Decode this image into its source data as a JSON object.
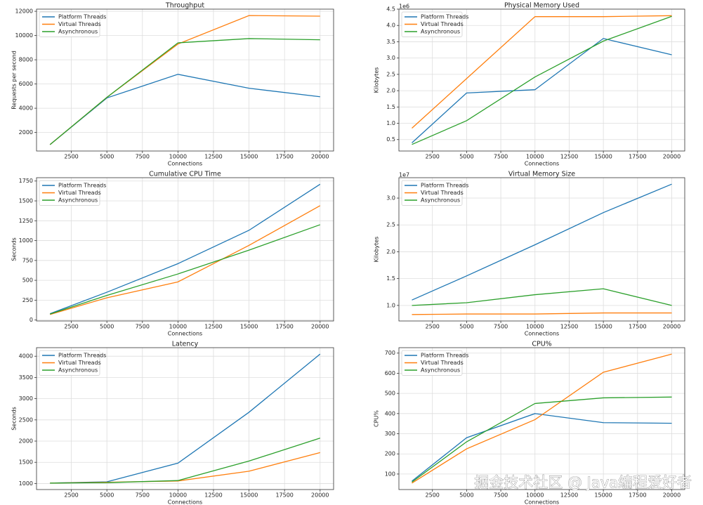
{
  "chart_data": [
    {
      "type": "line",
      "title": "Throughput",
      "xlabel": "Connections",
      "ylabel": "Requests per second",
      "x": [
        1000,
        5000,
        10000,
        15000,
        20000
      ],
      "xlim": [
        50,
        20950
      ],
      "xticks": [
        2500,
        5000,
        7500,
        10000,
        12500,
        15000,
        17500,
        20000
      ],
      "ylim": [
        470,
        12180
      ],
      "yticks": [
        2000,
        4000,
        6000,
        8000,
        10000,
        12000
      ],
      "grid": true,
      "legend": "upper left",
      "series": [
        {
          "name": "Platform Threads",
          "color": "#1f77b4",
          "values": [
            1000,
            4850,
            6800,
            5650,
            4950
          ]
        },
        {
          "name": "Virtual Threads",
          "color": "#ff7f0e",
          "values": [
            1000,
            4900,
            9300,
            11650,
            11600
          ]
        },
        {
          "name": "Asynchronous",
          "color": "#2ca02c",
          "values": [
            1000,
            4900,
            9400,
            9750,
            9650
          ]
        }
      ]
    },
    {
      "type": "line",
      "title": "Physical Memory Used",
      "xlabel": "Connections",
      "ylabel": "Kilobytes",
      "offset_label": "1e6",
      "x": [
        1000,
        5000,
        10000,
        15000,
        20000
      ],
      "xlim": [
        50,
        20950
      ],
      "xticks": [
        2500,
        5000,
        7500,
        10000,
        12500,
        15000,
        17500,
        20000
      ],
      "ylim": [
        0.15,
        4.5
      ],
      "yticks": [
        0.5,
        {
          "value": 1,
          "label": "1.0"
        },
        1.5,
        {
          "value": 2,
          "label": "2.0"
        },
        2.5,
        {
          "value": 3,
          "label": "3.0"
        },
        3.5,
        {
          "value": 4,
          "label": "4.0"
        },
        4.5
      ],
      "grid": true,
      "legend": "upper left",
      "series": [
        {
          "name": "Platform Threads",
          "color": "#1f77b4",
          "values": [
            0.4,
            1.93,
            2.03,
            3.6,
            3.1
          ]
        },
        {
          "name": "Virtual Threads",
          "color": "#ff7f0e",
          "values": [
            0.85,
            2.37,
            4.27,
            4.27,
            4.3
          ]
        },
        {
          "name": "Asynchronous",
          "color": "#2ca02c",
          "values": [
            0.35,
            1.08,
            2.42,
            3.52,
            4.28
          ]
        }
      ]
    },
    {
      "type": "line",
      "title": "Cumulative CPU Time",
      "xlabel": "Connections",
      "ylabel": "Seconds",
      "x": [
        1000,
        5000,
        10000,
        15000,
        20000
      ],
      "xlim": [
        50,
        20950
      ],
      "xticks": [
        2500,
        5000,
        7500,
        10000,
        12500,
        15000,
        17500,
        20000
      ],
      "ylim": [
        -12,
        1792
      ],
      "yticks": [
        0,
        250,
        500,
        750,
        1000,
        1250,
        1500,
        1750
      ],
      "grid": true,
      "legend": "upper left",
      "series": [
        {
          "name": "Platform Threads",
          "color": "#1f77b4",
          "values": [
            80,
            350,
            710,
            1130,
            1710
          ]
        },
        {
          "name": "Virtual Threads",
          "color": "#ff7f0e",
          "values": [
            70,
            280,
            480,
            940,
            1440
          ]
        },
        {
          "name": "Asynchronous",
          "color": "#2ca02c",
          "values": [
            75,
            310,
            580,
            880,
            1200
          ]
        }
      ]
    },
    {
      "type": "line",
      "title": "Virtual Memory Size",
      "xlabel": "Connections",
      "ylabel": "Kilobytes",
      "offset_label": "1e7",
      "x": [
        1000,
        5000,
        10000,
        15000,
        20000
      ],
      "xlim": [
        50,
        20950
      ],
      "xticks": [
        2500,
        5000,
        7500,
        10000,
        12500,
        15000,
        17500,
        20000
      ],
      "ylim": [
        0.71,
        3.38
      ],
      "yticks": [
        {
          "value": 1,
          "label": "1.0"
        },
        1.5,
        {
          "value": 2,
          "label": "2.0"
        },
        2.5,
        {
          "value": 3,
          "label": "3.0"
        }
      ],
      "grid": true,
      "legend": "upper left",
      "series": [
        {
          "name": "Platform Threads",
          "color": "#1f77b4",
          "values": [
            1.1,
            1.55,
            2.13,
            2.73,
            3.26
          ]
        },
        {
          "name": "Virtual Threads",
          "color": "#ff7f0e",
          "values": [
            0.83,
            0.84,
            0.84,
            0.86,
            0.86
          ]
        },
        {
          "name": "Asynchronous",
          "color": "#2ca02c",
          "values": [
            1.0,
            1.05,
            1.2,
            1.31,
            1.0
          ]
        }
      ]
    },
    {
      "type": "line",
      "title": "Latency",
      "xlabel": "Connections",
      "ylabel": "Seconds",
      "x": [
        1000,
        5000,
        10000,
        15000,
        20000
      ],
      "xlim": [
        50,
        20950
      ],
      "xticks": [
        2500,
        5000,
        7500,
        10000,
        12500,
        15000,
        17500,
        20000
      ],
      "ylim": [
        858,
        4202
      ],
      "yticks": [
        1000,
        1500,
        2000,
        2500,
        3000,
        3500,
        4000
      ],
      "grid": true,
      "legend": "upper left",
      "series": [
        {
          "name": "Platform Threads",
          "color": "#1f77b4",
          "values": [
            1010,
            1040,
            1480,
            2680,
            4050
          ]
        },
        {
          "name": "Virtual Threads",
          "color": "#ff7f0e",
          "values": [
            1010,
            1030,
            1060,
            1290,
            1730
          ]
        },
        {
          "name": "Asynchronous",
          "color": "#2ca02c",
          "values": [
            1010,
            1020,
            1070,
            1530,
            2070
          ]
        }
      ]
    },
    {
      "type": "line",
      "title": "CPU%",
      "xlabel": "Connections",
      "ylabel": "CPU%",
      "x": [
        1000,
        5000,
        10000,
        15000,
        20000
      ],
      "xlim": [
        50,
        20950
      ],
      "xticks": [
        2500,
        5000,
        7500,
        10000,
        12500,
        15000,
        17500,
        20000
      ],
      "ylim": [
        23,
        727
      ],
      "yticks": [
        100,
        200,
        300,
        400,
        500,
        600,
        700
      ],
      "grid": true,
      "legend": "upper left",
      "series": [
        {
          "name": "Platform Threads",
          "color": "#1f77b4",
          "values": [
            65,
            280,
            400,
            355,
            352
          ]
        },
        {
          "name": "Virtual Threads",
          "color": "#ff7f0e",
          "values": [
            55,
            225,
            370,
            605,
            695
          ]
        },
        {
          "name": "Asynchronous",
          "color": "#2ca02c",
          "values": [
            60,
            260,
            450,
            478,
            482
          ]
        }
      ]
    }
  ],
  "watermark": "掘金技术社区 @ Java编程爱好者"
}
